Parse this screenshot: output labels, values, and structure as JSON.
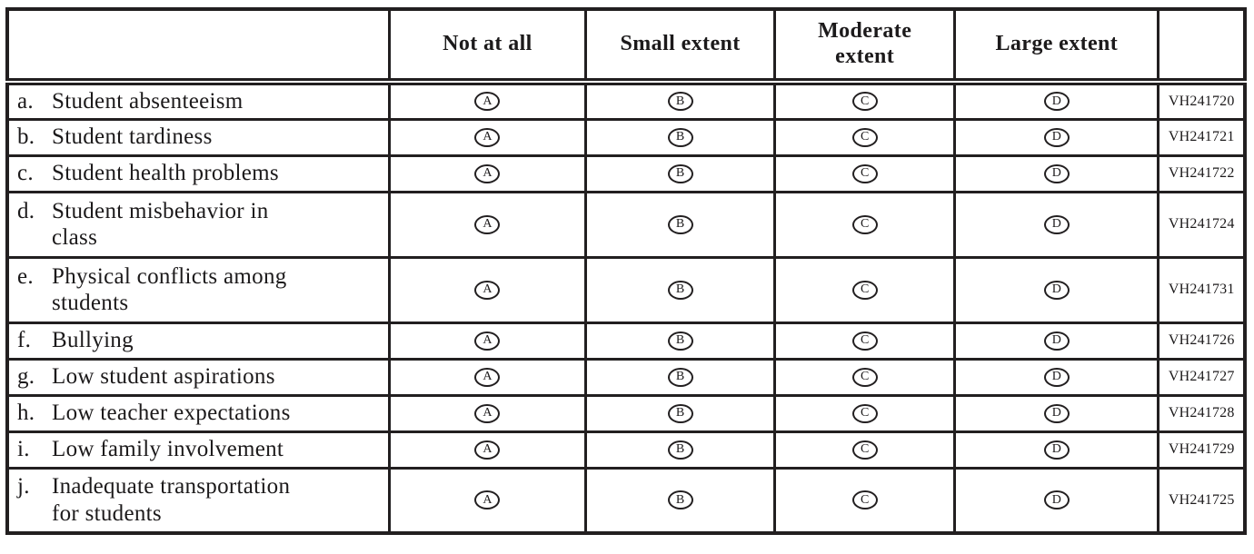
{
  "page": {
    "background_color": "#ffffff",
    "border_color": "#221f20",
    "text_color": "#1c1a1b"
  },
  "table": {
    "column_headers": [
      "",
      "Not at all",
      "Small extent",
      "Moderate\nextent",
      "Large extent",
      ""
    ],
    "option_letters": [
      "A",
      "B",
      "C",
      "D"
    ],
    "rows": [
      {
        "letter": "a.",
        "label": "Student absenteeism",
        "code": "VH241720"
      },
      {
        "letter": "b.",
        "label": "Student tardiness",
        "code": "VH241721"
      },
      {
        "letter": "c.",
        "label": "Student health problems",
        "code": "VH241722"
      },
      {
        "letter": "d.",
        "label": "Student misbehavior in\nclass",
        "code": "VH241724"
      },
      {
        "letter": "e.",
        "label": "Physical conflicts among\nstudents",
        "code": "VH241731"
      },
      {
        "letter": "f.",
        "label": "Bullying",
        "code": "VH241726"
      },
      {
        "letter": "g.",
        "label": "Low student aspirations",
        "code": "VH241727"
      },
      {
        "letter": "h.",
        "label": "Low teacher expectations",
        "code": "VH241728"
      },
      {
        "letter": "i.",
        "label": "Low family involvement",
        "code": "VH241729"
      },
      {
        "letter": "j.",
        "label": "Inadequate transportation\nfor students",
        "code": "VH241725"
      }
    ]
  }
}
